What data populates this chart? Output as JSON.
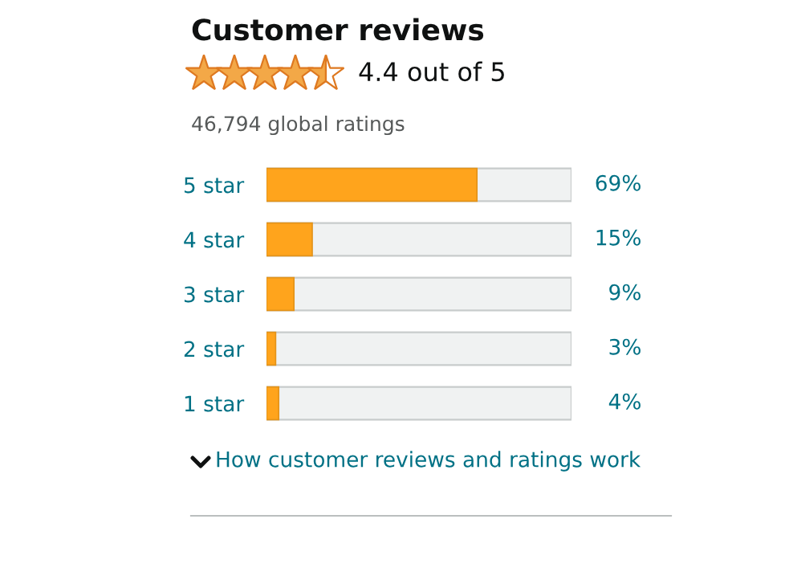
{
  "chart_data": {
    "type": "bar",
    "orientation": "horizontal",
    "title": "Customer reviews",
    "subtitle": "4.4 out of 5",
    "annotations": [
      "46,794 global ratings",
      "How customer reviews and ratings work"
    ],
    "categories": [
      "5 star",
      "4 star",
      "3 star",
      "2 star",
      "1 star"
    ],
    "values": [
      69,
      15,
      9,
      3,
      4
    ],
    "value_labels": [
      "69%",
      "15%",
      "9%",
      "3%",
      "4%"
    ],
    "color": "#ffa41c",
    "xlim": [
      0,
      100
    ],
    "tick_labels": "y",
    "grid": false,
    "legend": false
  }
}
